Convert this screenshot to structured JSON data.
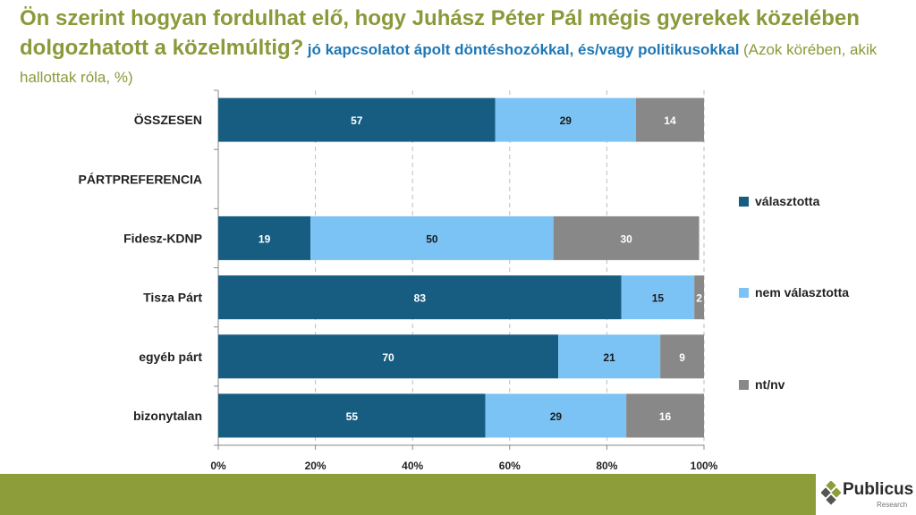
{
  "title": {
    "main": "Ön szerint hogyan fordulhat elő, hogy Juhász Péter Pál mégis gyerekek közelében dolgozhatott a közelmúltig?",
    "highlight": "jó kapcsolatot ápolt döntéshozókkal, és/vagy politikusokkal",
    "sub": "(Azok körében, akik hallottak róla, %)"
  },
  "colors": {
    "title": "#8a9a3a",
    "highlight": "#1f78b4",
    "footer": "#8c9d3a"
  },
  "chart_data": {
    "type": "bar",
    "orientation": "horizontal",
    "stacked": "percent",
    "categories": [
      "ÖSSZESEN",
      "PÁRTPREFERENCIA",
      "Fidesz-KDNP",
      "Tisza Párt",
      "egyéb párt",
      "bizonytalan"
    ],
    "series": [
      {
        "name": "választotta",
        "color": "#175d82",
        "values": [
          57,
          null,
          19,
          83,
          70,
          55
        ]
      },
      {
        "name": "nem választotta",
        "color": "#7cc3f5",
        "values": [
          29,
          null,
          50,
          15,
          21,
          29
        ]
      },
      {
        "name": "nt/nv",
        "color": "#888888",
        "values": [
          14,
          null,
          30,
          2,
          9,
          16
        ]
      }
    ],
    "xlim": [
      0,
      100
    ],
    "xticks": [
      "0%",
      "20%",
      "40%",
      "60%",
      "80%",
      "100%"
    ],
    "grid": "vertical dashed",
    "legend": "right"
  },
  "logo": {
    "name": "Publicus",
    "sub": "Research"
  }
}
